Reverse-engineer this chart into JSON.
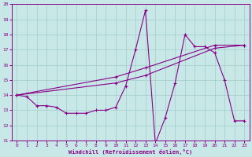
{
  "xlabel": "Windchill (Refroidissement éolien,°C)",
  "bg_color": "#c8e8e8",
  "grid_color": "#a8d0d0",
  "line_color": "#880088",
  "xlim": [
    -0.5,
    23.5
  ],
  "ylim": [
    11,
    20
  ],
  "xticks": [
    0,
    1,
    2,
    3,
    4,
    5,
    6,
    7,
    8,
    9,
    10,
    11,
    12,
    13,
    14,
    15,
    16,
    17,
    18,
    19,
    20,
    21,
    22,
    23
  ],
  "yticks": [
    11,
    12,
    13,
    14,
    15,
    16,
    17,
    18,
    19,
    20
  ],
  "line1_x": [
    0,
    1,
    2,
    3,
    4,
    5,
    6,
    7,
    8,
    9,
    10,
    11,
    12,
    13,
    14,
    15,
    16,
    17,
    18,
    19,
    20,
    21,
    22,
    23
  ],
  "line1_y": [
    14.0,
    13.9,
    13.3,
    13.3,
    13.2,
    12.8,
    12.8,
    12.8,
    13.0,
    13.0,
    13.2,
    14.6,
    17.0,
    19.6,
    10.8,
    12.5,
    14.8,
    18.0,
    17.2,
    17.2,
    16.8,
    15.0,
    12.3,
    12.3
  ],
  "line2_x": [
    0,
    10,
    13,
    20,
    23
  ],
  "line2_y": [
    14.0,
    14.8,
    15.3,
    17.1,
    17.3
  ],
  "line3_x": [
    0,
    10,
    13,
    20,
    23
  ],
  "line3_y": [
    14.0,
    15.2,
    15.8,
    17.3,
    17.3
  ]
}
